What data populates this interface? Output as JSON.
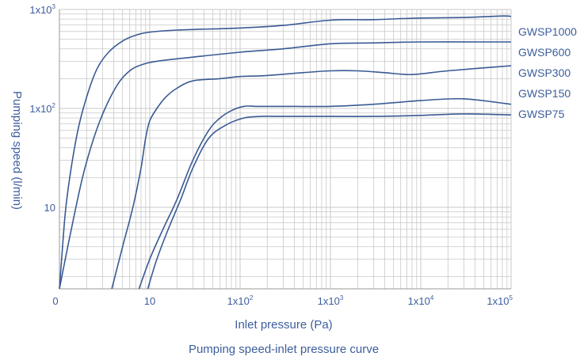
{
  "chart_data": {
    "type": "line",
    "title": "Pumping speed-inlet pressure curve",
    "xlabel": "Inlet pressure (Pa)",
    "ylabel": "Pumping speed (l/min)",
    "xscale": "log",
    "yscale": "log",
    "xlim": [
      1,
      100000
    ],
    "ylim": [
      1.5,
      1000
    ],
    "grid": true,
    "legend": "labels at right end of each line",
    "x_ticks": [
      {
        "value": 1,
        "base": "0",
        "exp": ""
      },
      {
        "value": 10,
        "base": "10",
        "exp": ""
      },
      {
        "value": 100,
        "base": "1x10",
        "exp": "2"
      },
      {
        "value": 1000,
        "base": "1x10",
        "exp": "3"
      },
      {
        "value": 10000,
        "base": "1x10",
        "exp": "4"
      },
      {
        "value": 100000,
        "base": "1x10",
        "exp": "5"
      }
    ],
    "y_ticks": [
      {
        "value": 10,
        "base": "10",
        "exp": ""
      },
      {
        "value": 100,
        "base": "1x10",
        "exp": "2"
      },
      {
        "value": 1000,
        "base": "1x10",
        "exp": "3"
      }
    ],
    "series": [
      {
        "name": "GWSP1000",
        "x": [
          1,
          1.15,
          1.3,
          1.6,
          2,
          2.6,
          3.5,
          5,
          7,
          10,
          20,
          100,
          300,
          1000,
          3000,
          10000,
          30000,
          80000,
          100000
        ],
        "y": [
          1.5,
          8,
          20,
          60,
          130,
          250,
          370,
          480,
          550,
          590,
          620,
          650,
          690,
          780,
          790,
          820,
          830,
          860,
          850
        ]
      },
      {
        "name": "GWSP600",
        "x": [
          1,
          1.3,
          1.8,
          2.4,
          3.2,
          4.5,
          6,
          8,
          12,
          30,
          100,
          300,
          1000,
          3000,
          10000,
          50000,
          100000
        ],
        "y": [
          1.5,
          5,
          20,
          50,
          100,
          180,
          240,
          275,
          300,
          330,
          370,
          400,
          450,
          460,
          470,
          470,
          470
        ]
      },
      {
        "name": "GWSP300",
        "x": [
          3.8,
          5,
          6.5,
          8,
          9,
          10,
          12,
          15,
          20,
          30,
          60,
          100,
          200,
          500,
          1000,
          2000,
          4000,
          8000,
          20000,
          100000
        ],
        "y": [
          1.5,
          4,
          10,
          25,
          50,
          75,
          100,
          130,
          160,
          190,
          200,
          210,
          215,
          230,
          240,
          240,
          230,
          220,
          240,
          270
        ]
      },
      {
        "name": "GWSP150",
        "x": [
          7.6,
          10,
          14,
          20,
          30,
          45,
          60,
          80,
          110,
          160,
          300,
          1000,
          3000,
          10000,
          30000,
          100000
        ],
        "y": [
          1.5,
          3,
          6,
          12,
          30,
          60,
          80,
          95,
          105,
          105,
          105,
          105,
          110,
          120,
          125,
          110
        ]
      },
      {
        "name": "GWSP75",
        "x": [
          9.5,
          12,
          16,
          22,
          30,
          45,
          70,
          110,
          170,
          300,
          1000,
          3000,
          10000,
          30000,
          100000
        ],
        "y": [
          1.5,
          3,
          6,
          12,
          25,
          50,
          68,
          80,
          83,
          83,
          83,
          83,
          85,
          88,
          86
        ]
      }
    ]
  }
}
